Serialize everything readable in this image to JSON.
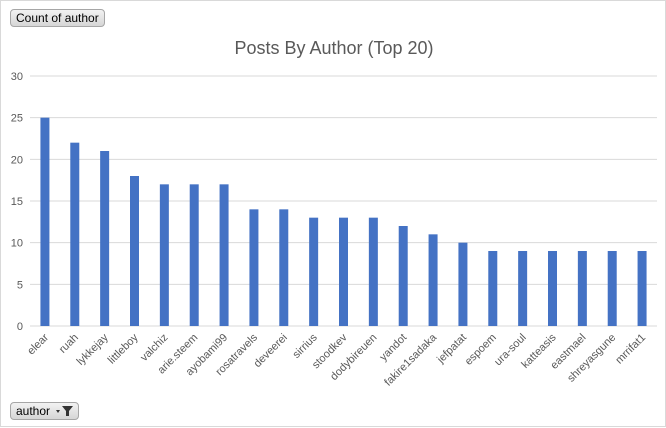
{
  "value_field_button": {
    "label": "Count of author"
  },
  "axis_field_button": {
    "label": "author",
    "icon": "filter-dropdown-icon"
  },
  "chart_data": {
    "type": "bar",
    "title": "Posts By Author  (Top 20)",
    "categories": [
      "elear",
      "ruah",
      "lykkejay",
      "littleboy",
      "valchiz",
      "arie.steem",
      "ayobami99",
      "rosatravels",
      "deveerei",
      "sirrius",
      "stoodkev",
      "dodybireuen",
      "yandot",
      "fakire1sadaka",
      "jefpatat",
      "espoem",
      "ura-soul",
      "katteasis",
      "eastmael",
      "shreyasgune",
      "mrrifat1"
    ],
    "values": [
      25,
      22,
      21,
      18,
      17,
      17,
      17,
      14,
      14,
      13,
      13,
      13,
      12,
      11,
      10,
      9,
      9,
      9,
      9,
      9,
      9
    ],
    "ylim": [
      0,
      30
    ],
    "yticks": [
      0,
      5,
      10,
      15,
      20,
      25,
      30
    ],
    "grid": true,
    "legend": "none",
    "bar_color": "#4472c4",
    "grid_color": "#d9d9d9",
    "text_color": "#595959"
  }
}
